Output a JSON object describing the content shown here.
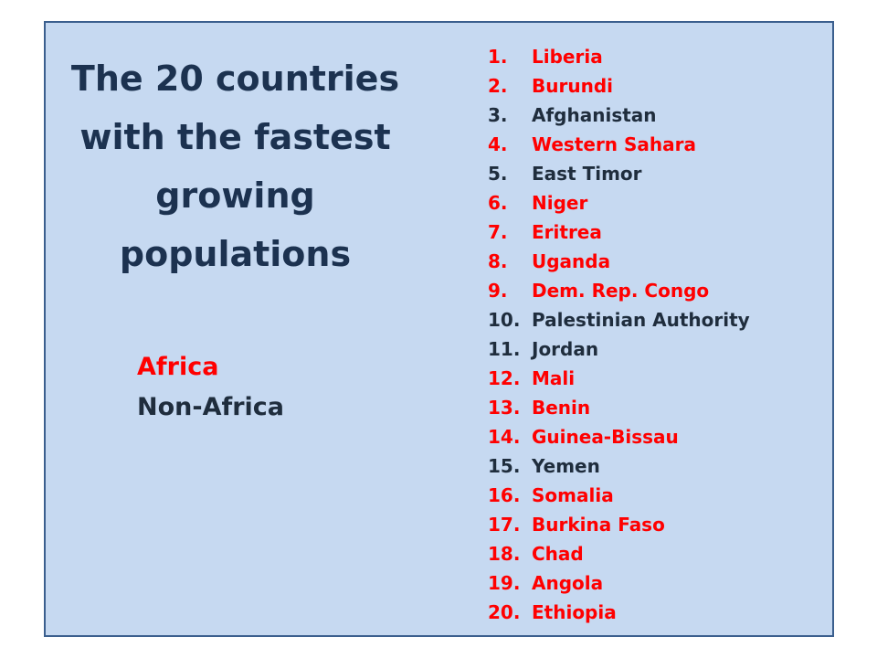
{
  "title_lines": [
    "The 20 countries",
    "with the fastest",
    "growing",
    "populations"
  ],
  "legend": [
    {
      "label": "Africa",
      "color": "#ff0000"
    },
    {
      "label": "Non-Africa",
      "color": "#1f2d3d"
    }
  ],
  "items": [
    {
      "number": "1.",
      "name": "Liberia",
      "africa": true
    },
    {
      "number": "2.",
      "name": "Burundi",
      "africa": true
    },
    {
      "number": "3.",
      "name": "Afghanistan",
      "africa": false
    },
    {
      "number": "4.",
      "name": "Western Sahara",
      "africa": true
    },
    {
      "number": "5.",
      "name": "East Timor",
      "africa": false
    },
    {
      "number": "6.",
      "name": "Niger",
      "africa": true
    },
    {
      "number": "7.",
      "name": "Eritrea",
      "africa": true
    },
    {
      "number": "8.",
      "name": "Uganda",
      "africa": true
    },
    {
      "number": "9.",
      "name": "Dem. Rep. Congo",
      "africa": true
    },
    {
      "number": "10.",
      "name": "Palestinian Authority",
      "africa": false
    },
    {
      "number": "11.",
      "name": "Jordan",
      "africa": false
    },
    {
      "number": "12.",
      "name": "Mali",
      "africa": true
    },
    {
      "number": "13.",
      "name": "Benin",
      "africa": true
    },
    {
      "number": "14.",
      "name": "Guinea-Bissau",
      "africa": true
    },
    {
      "number": "15.",
      "name": "Yemen",
      "africa": false
    },
    {
      "number": "16.",
      "name": "Somalia",
      "africa": true
    },
    {
      "number": "17.",
      "name": "Burkina Faso",
      "africa": true
    },
    {
      "number": "18.",
      "name": "Chad",
      "africa": true
    },
    {
      "number": "19.",
      "name": "Angola",
      "africa": true
    },
    {
      "number": "20.",
      "name": "Ethiopia",
      "africa": true
    }
  ]
}
